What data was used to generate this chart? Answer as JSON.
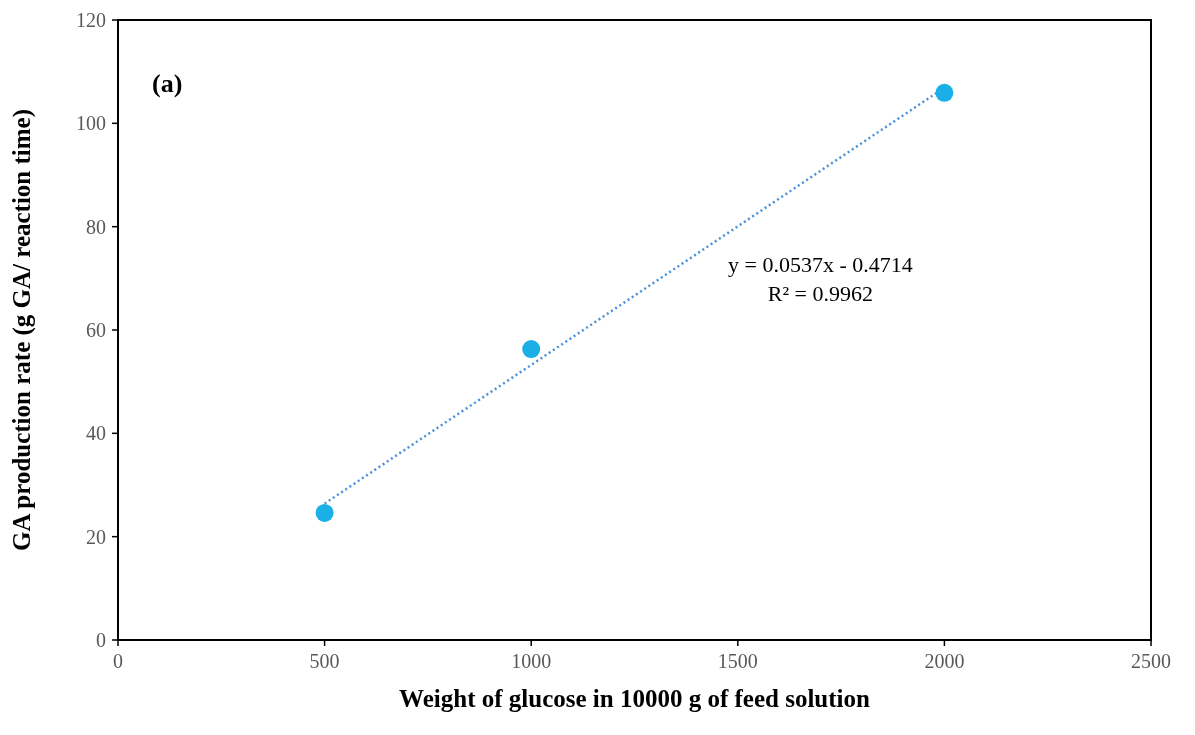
{
  "chart_data": {
    "type": "scatter",
    "xlabel": "Weight of glucose in 10000 g of feed solution",
    "ylabel": "GA production rate  (g GA/ reaction time)",
    "xlim": [
      0,
      2500
    ],
    "xticks": [
      0,
      500,
      1000,
      1500,
      2000,
      2500
    ],
    "ylim": [
      0,
      120
    ],
    "yticks": [
      0,
      20,
      40,
      60,
      80,
      100,
      120
    ],
    "series": [
      {
        "color": "#1aafe6",
        "marker": "circle",
        "x": [
          500,
          1000,
          2000
        ],
        "values": [
          24.6,
          56.3,
          105.9
        ]
      },
      {
        "type": "line",
        "color": "#4a90d9",
        "line_style": "dotted",
        "marker": "none",
        "x": [
          500,
          2000
        ],
        "values": [
          26.4,
          106.9
        ]
      }
    ],
    "annotations": [
      "(a)",
      "y = 0.0537x - 0.4714",
      "R² = 0.9962"
    ]
  }
}
